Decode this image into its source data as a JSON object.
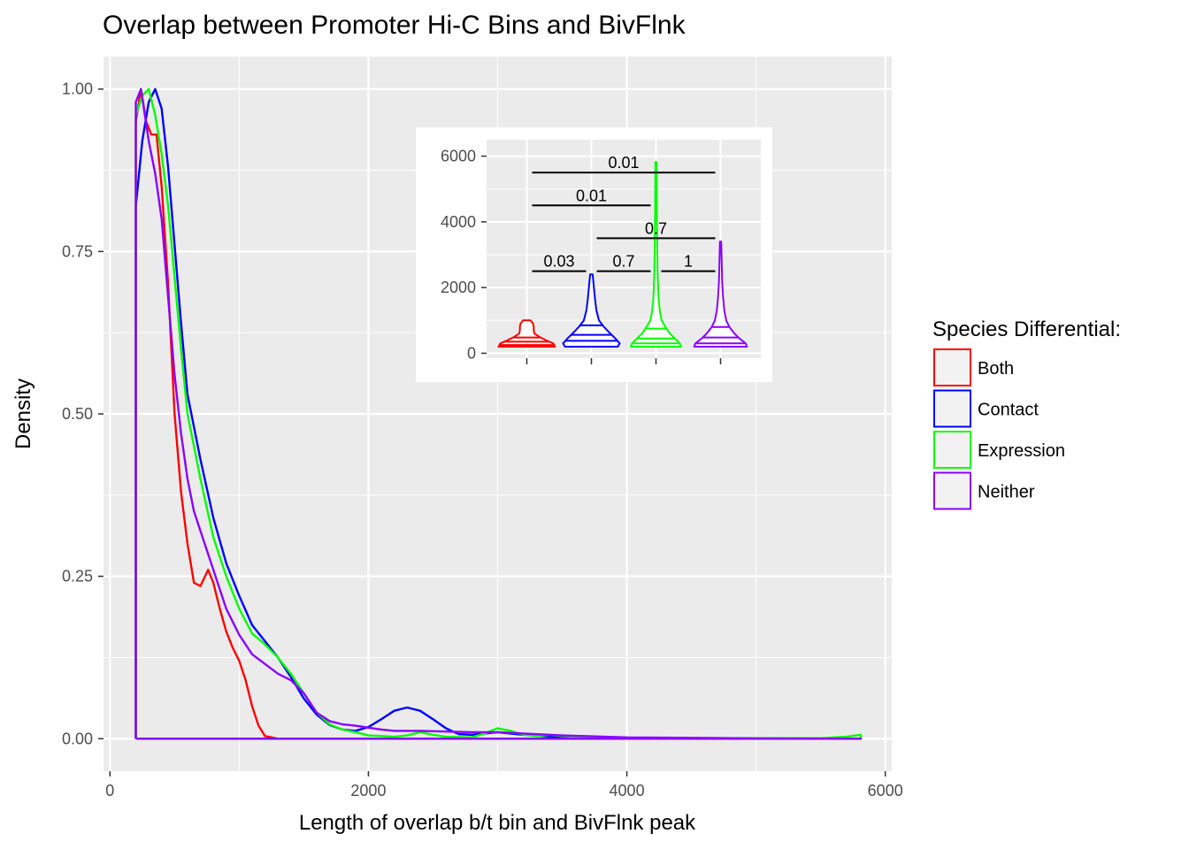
{
  "chart_data": [
    {
      "type": "line",
      "title": "Overlap between Promoter Hi-C Bins and BivFlnk",
      "xlabel": "Length of overlap b/t bin and BivFlnk peak",
      "ylabel": "Density",
      "xlim": [
        -50,
        6050
      ],
      "ylim": [
        -0.05,
        1.05
      ],
      "x_ticks": [
        0,
        2000,
        4000,
        6000
      ],
      "x_tick_labels": [
        "0",
        "2000",
        "4000",
        "6000"
      ],
      "y_ticks": [
        0,
        0.25,
        0.5,
        0.75,
        1
      ],
      "y_tick_labels": [
        "0.00",
        "0.25",
        "0.50",
        "0.75",
        "1.00"
      ],
      "grid": true,
      "legend": {
        "title": "Species Differential:",
        "placement": "right",
        "entries": [
          "Both",
          "Contact",
          "Expression",
          "Neither"
        ]
      },
      "series": [
        {
          "name": "Both",
          "color": "#ff0000",
          "points": [
            [
              200,
              0
            ],
            [
              200,
              0.95
            ],
            [
              240,
              1.0
            ],
            [
              280,
              0.95
            ],
            [
              320,
              0.93
            ],
            [
              360,
              0.93
            ],
            [
              400,
              0.85
            ],
            [
              450,
              0.7
            ],
            [
              500,
              0.5
            ],
            [
              550,
              0.38
            ],
            [
              600,
              0.3
            ],
            [
              650,
              0.24
            ],
            [
              700,
              0.235
            ],
            [
              760,
              0.26
            ],
            [
              800,
              0.24
            ],
            [
              850,
              0.2
            ],
            [
              900,
              0.165
            ],
            [
              950,
              0.14
            ],
            [
              1000,
              0.12
            ],
            [
              1050,
              0.09
            ],
            [
              1100,
              0.05
            ],
            [
              1150,
              0.02
            ],
            [
              1200,
              0.004
            ],
            [
              1300,
              0
            ],
            [
              2000,
              0
            ],
            [
              4000,
              0
            ],
            [
              5810,
              0
            ],
            [
              5810,
              0
            ],
            [
              200,
              0
            ]
          ]
        },
        {
          "name": "Contact",
          "color": "#0000ff",
          "points": [
            [
              200,
              0
            ],
            [
              200,
              0.82
            ],
            [
              250,
              0.92
            ],
            [
              300,
              0.98
            ],
            [
              350,
              1.0
            ],
            [
              400,
              0.97
            ],
            [
              450,
              0.88
            ],
            [
              500,
              0.76
            ],
            [
              550,
              0.64
            ],
            [
              600,
              0.53
            ],
            [
              700,
              0.43
            ],
            [
              800,
              0.34
            ],
            [
              900,
              0.27
            ],
            [
              1000,
              0.22
            ],
            [
              1100,
              0.175
            ],
            [
              1200,
              0.15
            ],
            [
              1300,
              0.125
            ],
            [
              1400,
              0.095
            ],
            [
              1500,
              0.062
            ],
            [
              1600,
              0.037
            ],
            [
              1700,
              0.021
            ],
            [
              1800,
              0.014
            ],
            [
              1900,
              0.012
            ],
            [
              2000,
              0.018
            ],
            [
              2100,
              0.03
            ],
            [
              2200,
              0.043
            ],
            [
              2300,
              0.048
            ],
            [
              2400,
              0.043
            ],
            [
              2500,
              0.03
            ],
            [
              2600,
              0.016
            ],
            [
              2700,
              0.007
            ],
            [
              2800,
              0.006
            ],
            [
              2900,
              0.008
            ],
            [
              3000,
              0.01
            ],
            [
              3200,
              0.006
            ],
            [
              3500,
              0.002
            ],
            [
              4000,
              0.001
            ],
            [
              5000,
              0.0003
            ],
            [
              5810,
              0
            ],
            [
              200,
              0
            ]
          ]
        },
        {
          "name": "Expression",
          "color": "#00ff00",
          "points": [
            [
              200,
              0
            ],
            [
              200,
              0.96
            ],
            [
              250,
              0.99
            ],
            [
              300,
              1.0
            ],
            [
              350,
              0.96
            ],
            [
              400,
              0.9
            ],
            [
              450,
              0.82
            ],
            [
              500,
              0.71
            ],
            [
              550,
              0.6
            ],
            [
              600,
              0.5
            ],
            [
              700,
              0.4
            ],
            [
              800,
              0.31
            ],
            [
              900,
              0.25
            ],
            [
              1000,
              0.2
            ],
            [
              1100,
              0.162
            ],
            [
              1200,
              0.145
            ],
            [
              1300,
              0.125
            ],
            [
              1400,
              0.1
            ],
            [
              1500,
              0.07
            ],
            [
              1600,
              0.04
            ],
            [
              1700,
              0.022
            ],
            [
              1800,
              0.014
            ],
            [
              1900,
              0.01
            ],
            [
              2000,
              0.005
            ],
            [
              2200,
              0.003
            ],
            [
              2300,
              0.005
            ],
            [
              2400,
              0.01
            ],
            [
              2500,
              0.006
            ],
            [
              2600,
              0.003
            ],
            [
              2800,
              0.002
            ],
            [
              2900,
              0.008
            ],
            [
              3000,
              0.016
            ],
            [
              3100,
              0.012
            ],
            [
              3200,
              0.006
            ],
            [
              3300,
              0.004
            ],
            [
              3400,
              0.006
            ],
            [
              3500,
              0.004
            ],
            [
              3700,
              0.002
            ],
            [
              4000,
              0.001
            ],
            [
              5000,
              0.0008
            ],
            [
              5500,
              0.0008
            ],
            [
              5700,
              0.003
            ],
            [
              5810,
              0.006
            ],
            [
              5810,
              0
            ],
            [
              200,
              0
            ]
          ]
        },
        {
          "name": "Neither",
          "color": "#8b00ff",
          "points": [
            [
              200,
              0
            ],
            [
              200,
              0.98
            ],
            [
              240,
              1.0
            ],
            [
              270,
              0.96
            ],
            [
              300,
              0.92
            ],
            [
              350,
              0.87
            ],
            [
              400,
              0.8
            ],
            [
              450,
              0.68
            ],
            [
              500,
              0.56
            ],
            [
              550,
              0.47
            ],
            [
              600,
              0.4
            ],
            [
              650,
              0.35
            ],
            [
              700,
              0.32
            ],
            [
              750,
              0.29
            ],
            [
              800,
              0.26
            ],
            [
              850,
              0.23
            ],
            [
              900,
              0.2
            ],
            [
              950,
              0.18
            ],
            [
              1000,
              0.16
            ],
            [
              1100,
              0.13
            ],
            [
              1200,
              0.115
            ],
            [
              1300,
              0.1
            ],
            [
              1400,
              0.09
            ],
            [
              1500,
              0.07
            ],
            [
              1600,
              0.04
            ],
            [
              1700,
              0.027
            ],
            [
              1800,
              0.022
            ],
            [
              1900,
              0.02
            ],
            [
              2000,
              0.017
            ],
            [
              2100,
              0.014
            ],
            [
              2200,
              0.012
            ],
            [
              2400,
              0.012
            ],
            [
              2600,
              0.011
            ],
            [
              2800,
              0.01
            ],
            [
              3000,
              0.01
            ],
            [
              3200,
              0.008
            ],
            [
              3500,
              0.005
            ],
            [
              4000,
              0.002
            ],
            [
              5000,
              0.0005
            ],
            [
              5810,
              0
            ],
            [
              200,
              0
            ]
          ]
        }
      ]
    },
    {
      "type": "violin",
      "placement": "inset",
      "ylim": [
        -150,
        6500
      ],
      "y_ticks": [
        0,
        2000,
        4000,
        6000
      ],
      "y_tick_labels": [
        "0",
        "2000",
        "4000",
        "6000"
      ],
      "grid": true,
      "categories": [
        "Both",
        "Contact",
        "Expression",
        "Neither"
      ],
      "violins": [
        {
          "name": "Both",
          "color": "#ff0000",
          "min": 200,
          "max": 1000,
          "quantiles": [
            250,
            350,
            480
          ],
          "profile": [
            [
              200,
              0.45
            ],
            [
              300,
              0.42
            ],
            [
              400,
              0.3
            ],
            [
              500,
              0.2
            ],
            [
              600,
              0.12
            ],
            [
              700,
              0.11
            ],
            [
              800,
              0.11
            ],
            [
              900,
              0.1
            ],
            [
              1000,
              0.06
            ]
          ]
        },
        {
          "name": "Contact",
          "color": "#0000ff",
          "min": 200,
          "max": 2400,
          "quantiles": [
            380,
            560,
            850
          ],
          "profile": [
            [
              200,
              0.42
            ],
            [
              300,
              0.45
            ],
            [
              450,
              0.38
            ],
            [
              600,
              0.3
            ],
            [
              800,
              0.2
            ],
            [
              1000,
              0.12
            ],
            [
              1300,
              0.08
            ],
            [
              1600,
              0.06
            ],
            [
              2000,
              0.04
            ],
            [
              2400,
              0.02
            ]
          ]
        },
        {
          "name": "Expression",
          "color": "#00ff00",
          "min": 200,
          "max": 5820,
          "quantiles": [
            300,
            450,
            750
          ],
          "profile": [
            [
              200,
              0.4
            ],
            [
              300,
              0.38
            ],
            [
              450,
              0.3
            ],
            [
              600,
              0.22
            ],
            [
              800,
              0.15
            ],
            [
              1000,
              0.09
            ],
            [
              1300,
              0.06
            ],
            [
              1700,
              0.04
            ],
            [
              2500,
              0.025
            ],
            [
              4000,
              0.015
            ],
            [
              5820,
              0.01
            ]
          ]
        },
        {
          "name": "Neither",
          "color": "#8b00ff",
          "min": 200,
          "max": 3400,
          "quantiles": [
            300,
            480,
            800
          ],
          "profile": [
            [
              200,
              0.42
            ],
            [
              300,
              0.4
            ],
            [
              450,
              0.3
            ],
            [
              600,
              0.22
            ],
            [
              800,
              0.14
            ],
            [
              1000,
              0.09
            ],
            [
              1300,
              0.06
            ],
            [
              1700,
              0.04
            ],
            [
              2200,
              0.025
            ],
            [
              3400,
              0.01
            ]
          ]
        }
      ],
      "comparisons": [
        {
          "from": 0,
          "to": 1,
          "y": 2500,
          "label": "0.03"
        },
        {
          "from": 1,
          "to": 2,
          "y": 2500,
          "label": "0.7"
        },
        {
          "from": 2,
          "to": 3,
          "y": 2500,
          "label": "1"
        },
        {
          "from": 1,
          "to": 3,
          "y": 3500,
          "label": "0.7"
        },
        {
          "from": 0,
          "to": 2,
          "y": 4500,
          "label": "0.01"
        },
        {
          "from": 0,
          "to": 3,
          "y": 5500,
          "label": "0.01"
        }
      ]
    }
  ]
}
